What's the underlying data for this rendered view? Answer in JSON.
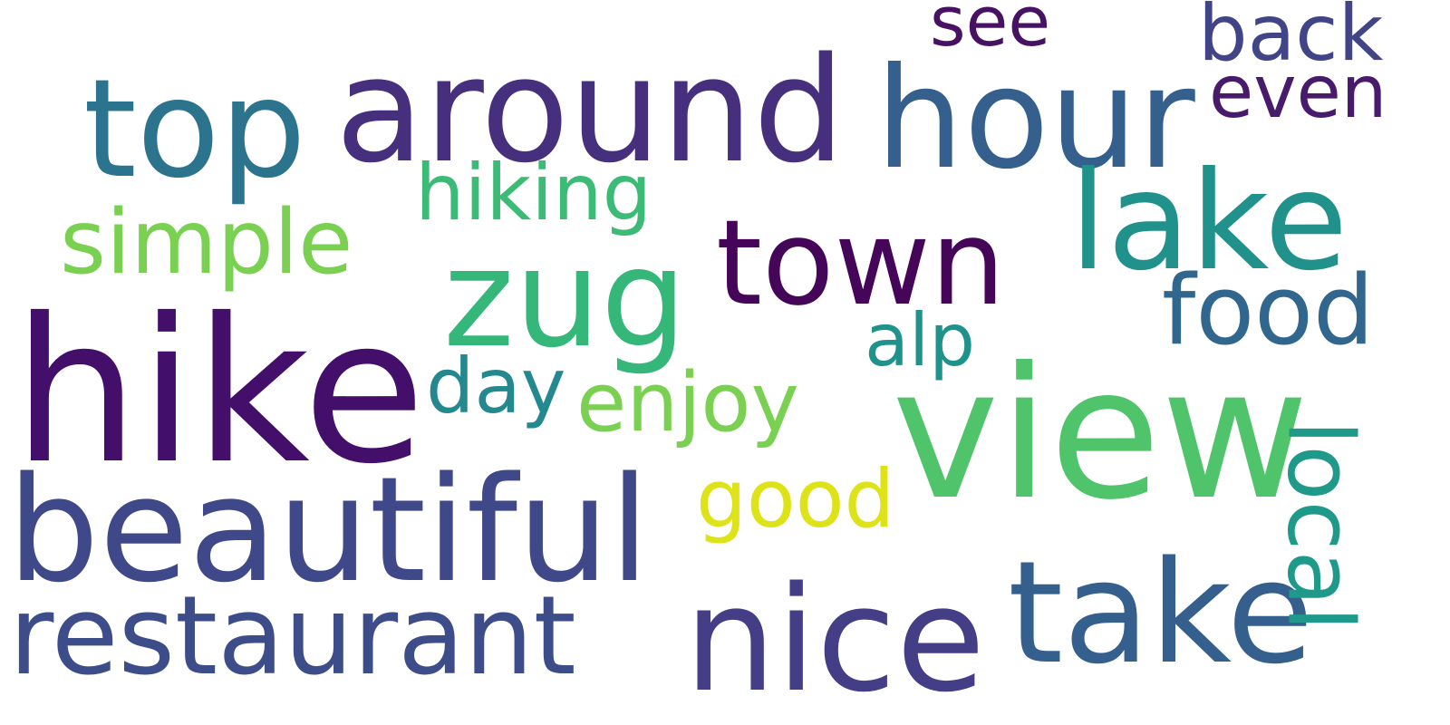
{
  "words": [
    {
      "text": "hike",
      "color": "#440f6b"
    },
    {
      "text": "view",
      "color": "#4fc46a"
    },
    {
      "text": "beautiful",
      "color": "#3f4889"
    },
    {
      "text": "restaurant",
      "color": "#3d4d8a"
    },
    {
      "text": "nice",
      "color": "#433e85"
    },
    {
      "text": "take",
      "color": "#355f8d"
    },
    {
      "text": "around",
      "color": "#46307e"
    },
    {
      "text": "hour",
      "color": "#355f8d"
    },
    {
      "text": "top",
      "color": "#2c738e"
    },
    {
      "text": "zug",
      "color": "#35b779"
    },
    {
      "text": "town",
      "color": "#450559"
    },
    {
      "text": "lake",
      "color": "#21918c"
    },
    {
      "text": "simple",
      "color": "#7ad151"
    },
    {
      "text": "hiking",
      "color": "#3bbb75"
    },
    {
      "text": "food",
      "color": "#31668e"
    },
    {
      "text": "alp",
      "color": "#20928c"
    },
    {
      "text": "day",
      "color": "#23898e"
    },
    {
      "text": "enjoy",
      "color": "#7ad151"
    },
    {
      "text": "good",
      "color": "#dde318"
    },
    {
      "text": "local",
      "color": "#1f9a8a"
    },
    {
      "text": "see",
      "color": "#471164"
    },
    {
      "text": "back",
      "color": "#414487"
    },
    {
      "text": "even",
      "color": "#481a6c"
    }
  ]
}
